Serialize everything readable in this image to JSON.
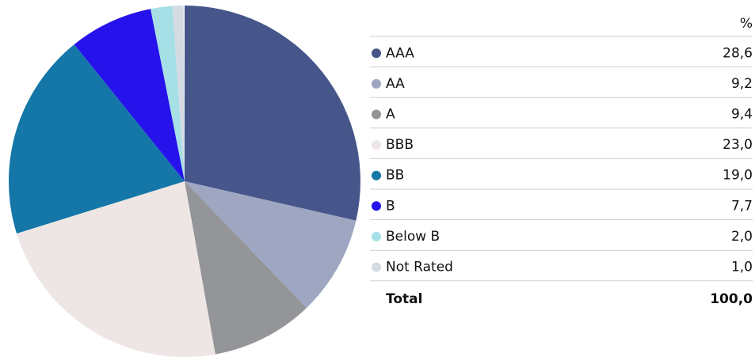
{
  "chart_data": {
    "type": "pie",
    "unit_header": "%",
    "categories": [
      "AAA",
      "AA",
      "A",
      "BBB",
      "BB",
      "B",
      "Below B",
      "Not Rated"
    ],
    "values": [
      28.6,
      9.2,
      9.4,
      23.0,
      19.0,
      7.7,
      2.0,
      1.0
    ],
    "value_labels": [
      "28,6",
      "9,2",
      "9,4",
      "23,0",
      "19,0",
      "7,7",
      "2,0",
      "1,0"
    ],
    "colors": [
      "#46568a",
      "#9ea6c2",
      "#939598",
      "#ede6e4",
      "#1477a8",
      "#2612ea",
      "#a6dfe6",
      "#d5dbe3"
    ],
    "total": {
      "label": "Total",
      "value": 100,
      "value_label": "100,0"
    }
  }
}
